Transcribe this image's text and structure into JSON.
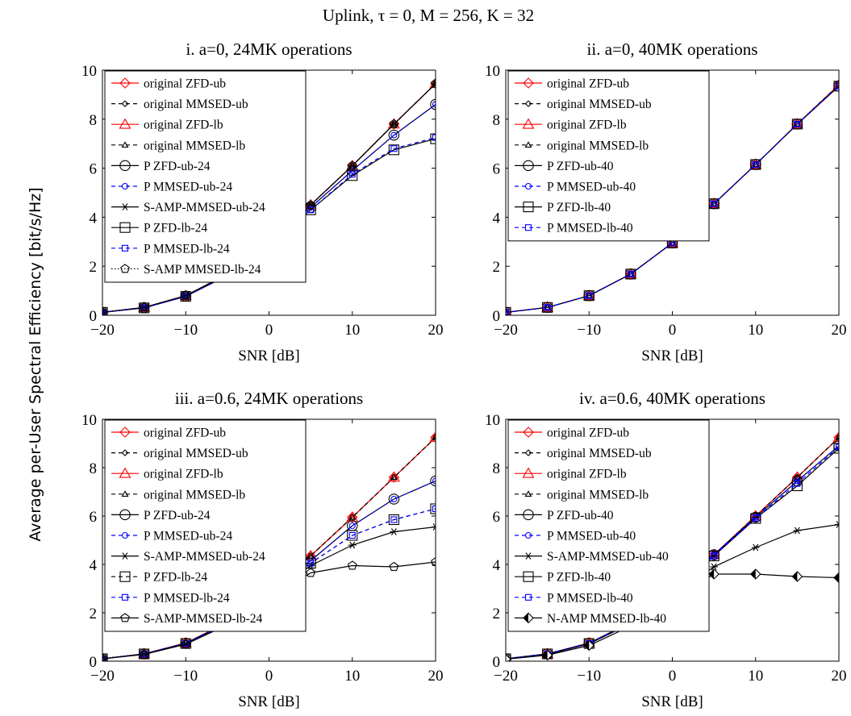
{
  "figure": {
    "title": "Uplink, τ = 0, M = 256, K = 32",
    "ylabel": "Average per-User Spectral Efficiency [bit/s/Hz]",
    "colors": {
      "red": "#ff0000",
      "blue": "#0000ff",
      "black": "#000000"
    }
  },
  "chart_data": [
    {
      "type": "line",
      "title": "i. a=0, 24MK operations",
      "xlabel": "SNR [dB]",
      "xlim": [
        -20,
        20
      ],
      "ylim": [
        0,
        10
      ],
      "xticks": [
        -20,
        -10,
        0,
        10,
        20
      ],
      "yticks": [
        0,
        2,
        4,
        6,
        8,
        10
      ],
      "legend_position": "top-left",
      "x": [
        -20,
        -15,
        -10,
        -5,
        0,
        5,
        10,
        15,
        20
      ],
      "series": [
        {
          "name": "original ZFD-ub",
          "color": "#ff0000",
          "dash": "solid",
          "marker": "diamond",
          "values": [
            0.12,
            0.32,
            0.8,
            1.68,
            2.95,
            4.5,
            6.1,
            7.8,
            9.45
          ]
        },
        {
          "name": "original MMSED-ub",
          "color": "#000000",
          "dash": "dashed",
          "marker": "diamond-small",
          "values": [
            0.12,
            0.32,
            0.8,
            1.68,
            2.95,
            4.5,
            6.1,
            7.8,
            9.45
          ]
        },
        {
          "name": "original ZFD-lb",
          "color": "#ff0000",
          "dash": "solid",
          "marker": "triangle",
          "values": [
            0.12,
            0.32,
            0.8,
            1.68,
            2.95,
            4.5,
            6.1,
            7.8,
            9.45
          ]
        },
        {
          "name": "original MMSED-lb",
          "color": "#000000",
          "dash": "dashed",
          "marker": "triangle-small",
          "values": [
            0.12,
            0.32,
            0.8,
            1.68,
            2.95,
            4.5,
            6.1,
            7.8,
            9.45
          ]
        },
        {
          "name": "P ZFD-ub-24",
          "color": "#000000",
          "dash": "solid",
          "marker": "circle",
          "values": [
            0.12,
            0.31,
            0.78,
            1.65,
            2.85,
            4.4,
            5.9,
            7.35,
            8.6
          ]
        },
        {
          "name": "P MMSED-ub-24",
          "color": "#0000ff",
          "dash": "dashed",
          "marker": "circle-small",
          "values": [
            0.12,
            0.31,
            0.78,
            1.65,
            2.85,
            4.4,
            5.9,
            7.35,
            8.6
          ]
        },
        {
          "name": "S-AMP-MMSED-ub-24",
          "color": "#000000",
          "dash": "solid",
          "marker": "star",
          "values": [
            0.12,
            0.32,
            0.8,
            1.68,
            2.95,
            4.5,
            6.1,
            7.8,
            9.45
          ]
        },
        {
          "name": "P ZFD-lb-24",
          "color": "#000000",
          "dash": "solid",
          "marker": "square",
          "values": [
            0.12,
            0.3,
            0.77,
            1.62,
            2.8,
            4.3,
            5.7,
            6.75,
            7.2
          ]
        },
        {
          "name": "P MMSED-lb-24",
          "color": "#0000ff",
          "dash": "dashed",
          "marker": "square-small",
          "values": [
            0.12,
            0.3,
            0.77,
            1.62,
            2.8,
            4.3,
            5.75,
            6.8,
            7.25
          ]
        },
        {
          "name": "S-AMP MMSED-lb-24",
          "color": "#000000",
          "dash": "dotted",
          "marker": "pentagon",
          "values": [
            0.12,
            0.32,
            0.8,
            1.68,
            2.95,
            4.5,
            6.1,
            7.8,
            9.45
          ]
        }
      ]
    },
    {
      "type": "line",
      "title": "ii. a=0, 40MK operations",
      "xlabel": "SNR [dB]",
      "xlim": [
        -20,
        20
      ],
      "ylim": [
        0,
        10
      ],
      "xticks": [
        -20,
        -10,
        0,
        10,
        20
      ],
      "yticks": [
        0,
        2,
        4,
        6,
        8,
        10
      ],
      "legend_position": "top-left",
      "x": [
        -20,
        -15,
        -10,
        -5,
        0,
        5,
        10,
        15,
        20
      ],
      "series": [
        {
          "name": "original ZFD-ub",
          "color": "#ff0000",
          "dash": "solid",
          "marker": "diamond",
          "values": [
            0.12,
            0.32,
            0.8,
            1.68,
            2.95,
            4.55,
            6.15,
            7.8,
            9.4
          ]
        },
        {
          "name": "original MMSED-ub",
          "color": "#000000",
          "dash": "dashed",
          "marker": "diamond-small",
          "values": [
            0.12,
            0.32,
            0.8,
            1.68,
            2.95,
            4.55,
            6.15,
            7.8,
            9.4
          ]
        },
        {
          "name": "original ZFD-lb",
          "color": "#ff0000",
          "dash": "solid",
          "marker": "triangle",
          "values": [
            0.12,
            0.32,
            0.8,
            1.68,
            2.95,
            4.55,
            6.15,
            7.8,
            9.4
          ]
        },
        {
          "name": "original MMSED-lb",
          "color": "#000000",
          "dash": "dashed",
          "marker": "triangle-small",
          "values": [
            0.12,
            0.32,
            0.8,
            1.68,
            2.95,
            4.55,
            6.15,
            7.8,
            9.4
          ]
        },
        {
          "name": "P ZFD-ub-40",
          "color": "#000000",
          "dash": "solid",
          "marker": "circle",
          "values": [
            0.12,
            0.32,
            0.8,
            1.68,
            2.95,
            4.55,
            6.15,
            7.8,
            9.35
          ]
        },
        {
          "name": "P MMSED-ub-40",
          "color": "#0000ff",
          "dash": "dashed",
          "marker": "circle-small",
          "values": [
            0.12,
            0.32,
            0.8,
            1.68,
            2.95,
            4.55,
            6.15,
            7.8,
            9.35
          ]
        },
        {
          "name": "P ZFD-lb-40",
          "color": "#000000",
          "dash": "solid",
          "marker": "square",
          "values": [
            0.12,
            0.32,
            0.8,
            1.68,
            2.95,
            4.55,
            6.15,
            7.8,
            9.35
          ]
        },
        {
          "name": "P MMSED-lb-40",
          "color": "#0000ff",
          "dash": "dashed",
          "marker": "square-small",
          "values": [
            0.12,
            0.32,
            0.8,
            1.68,
            2.95,
            4.55,
            6.15,
            7.8,
            9.35
          ]
        }
      ]
    },
    {
      "type": "line",
      "title": "iii. a=0.6, 24MK operations",
      "xlabel": "SNR [dB]",
      "xlim": [
        -20,
        20
      ],
      "ylim": [
        0,
        10
      ],
      "xticks": [
        -20,
        -10,
        0,
        10,
        20
      ],
      "yticks": [
        0,
        2,
        4,
        6,
        8,
        10
      ],
      "legend_position": "top-left",
      "x": [
        -20,
        -15,
        -10,
        -5,
        0,
        5,
        10,
        15,
        20
      ],
      "series": [
        {
          "name": "original ZFD-ub",
          "color": "#ff0000",
          "dash": "solid",
          "marker": "diamond",
          "values": [
            0.1,
            0.3,
            0.75,
            1.6,
            2.85,
            4.35,
            5.95,
            7.6,
            9.25
          ]
        },
        {
          "name": "original MMSED-ub",
          "color": "#000000",
          "dash": "dashed",
          "marker": "diamond-small",
          "values": [
            0.1,
            0.3,
            0.75,
            1.6,
            2.85,
            4.35,
            5.95,
            7.6,
            9.25
          ]
        },
        {
          "name": "original ZFD-lb",
          "color": "#ff0000",
          "dash": "solid",
          "marker": "triangle",
          "values": [
            0.1,
            0.3,
            0.75,
            1.6,
            2.85,
            4.35,
            5.95,
            7.6,
            9.25
          ]
        },
        {
          "name": "original MMSED-lb",
          "color": "#000000",
          "dash": "dashed",
          "marker": "triangle-small",
          "values": [
            0.1,
            0.3,
            0.75,
            1.6,
            2.85,
            4.35,
            5.95,
            7.6,
            9.25
          ]
        },
        {
          "name": "P ZFD-ub-24",
          "color": "#000000",
          "dash": "solid",
          "marker": "circle",
          "values": [
            0.1,
            0.3,
            0.74,
            1.58,
            2.8,
            4.15,
            5.6,
            6.7,
            7.45
          ]
        },
        {
          "name": "P MMSED-ub-24",
          "color": "#0000ff",
          "dash": "dashed",
          "marker": "circle-small",
          "values": [
            0.1,
            0.3,
            0.74,
            1.58,
            2.8,
            4.15,
            5.6,
            6.7,
            7.45
          ]
        },
        {
          "name": "S-AMP-MMSED-ub-24",
          "color": "#000000",
          "dash": "solid",
          "marker": "star",
          "values": [
            0.1,
            0.29,
            0.72,
            1.55,
            2.7,
            3.95,
            4.8,
            5.35,
            5.55
          ]
        },
        {
          "name": "P ZFD-lb-24",
          "color": "#000000",
          "dash": "dashed",
          "marker": "square",
          "values": [
            0.1,
            0.3,
            0.73,
            1.57,
            2.78,
            4.05,
            5.2,
            5.85,
            6.3
          ]
        },
        {
          "name": "P MMSED-lb-24",
          "color": "#0000ff",
          "dash": "dashed",
          "marker": "square-small",
          "values": [
            0.1,
            0.3,
            0.73,
            1.57,
            2.78,
            4.05,
            5.2,
            5.85,
            6.3
          ]
        },
        {
          "name": "S-AMP-MMSED-lb-24",
          "color": "#000000",
          "dash": "solid",
          "marker": "pentagon",
          "values": [
            0.1,
            0.28,
            0.7,
            1.5,
            2.6,
            3.65,
            3.95,
            3.9,
            4.1
          ]
        }
      ]
    },
    {
      "type": "line",
      "title": "iv. a=0.6, 40MK operations",
      "xlabel": "SNR [dB]",
      "xlim": [
        -20,
        20
      ],
      "ylim": [
        0,
        10
      ],
      "xticks": [
        -20,
        -10,
        0,
        10,
        20
      ],
      "yticks": [
        0,
        2,
        4,
        6,
        8,
        10
      ],
      "legend_position": "top-left",
      "x": [
        -20,
        -15,
        -10,
        -5,
        0,
        5,
        10,
        15,
        20
      ],
      "series": [
        {
          "name": "original ZFD-ub",
          "color": "#ff0000",
          "dash": "solid",
          "marker": "diamond",
          "values": [
            0.1,
            0.3,
            0.75,
            1.6,
            2.85,
            4.4,
            6.0,
            7.6,
            9.25
          ]
        },
        {
          "name": "original MMSED-ub",
          "color": "#000000",
          "dash": "dashed",
          "marker": "diamond-small",
          "values": [
            0.1,
            0.3,
            0.75,
            1.6,
            2.85,
            4.4,
            6.0,
            7.6,
            9.25
          ]
        },
        {
          "name": "original ZFD-lb",
          "color": "#ff0000",
          "dash": "solid",
          "marker": "triangle",
          "values": [
            0.1,
            0.3,
            0.75,
            1.6,
            2.85,
            4.4,
            6.0,
            7.6,
            9.25
          ]
        },
        {
          "name": "original MMSED-lb",
          "color": "#000000",
          "dash": "dashed",
          "marker": "triangle-small",
          "values": [
            0.1,
            0.3,
            0.75,
            1.6,
            2.85,
            4.4,
            6.0,
            7.6,
            9.25
          ]
        },
        {
          "name": "P ZFD-ub-40",
          "color": "#000000",
          "dash": "solid",
          "marker": "circle",
          "values": [
            0.1,
            0.3,
            0.74,
            1.6,
            2.85,
            4.4,
            5.95,
            7.45,
            8.9
          ]
        },
        {
          "name": "P MMSED-ub-40",
          "color": "#0000ff",
          "dash": "dashed",
          "marker": "circle-small",
          "values": [
            0.1,
            0.3,
            0.74,
            1.6,
            2.85,
            4.4,
            5.95,
            7.45,
            8.9
          ]
        },
        {
          "name": "S-AMP-MMSED-ub-40",
          "color": "#000000",
          "dash": "solid",
          "marker": "star",
          "values": [
            0.1,
            0.28,
            0.72,
            1.55,
            2.7,
            3.9,
            4.7,
            5.4,
            5.65
          ]
        },
        {
          "name": "P ZFD-lb-40",
          "color": "#000000",
          "dash": "solid",
          "marker": "square",
          "values": [
            0.1,
            0.3,
            0.73,
            1.58,
            2.82,
            4.35,
            5.9,
            7.25,
            8.8
          ]
        },
        {
          "name": "P MMSED-lb-40",
          "color": "#0000ff",
          "dash": "dashed",
          "marker": "square-small",
          "values": [
            0.1,
            0.3,
            0.73,
            1.58,
            2.82,
            4.35,
            5.9,
            7.35,
            8.85
          ]
        },
        {
          "name": "N-AMP MMSED-lb-40",
          "color": "#000000",
          "dash": "solid",
          "marker": "half-diamond",
          "values": [
            0.08,
            0.25,
            0.65,
            1.45,
            2.5,
            3.6,
            3.6,
            3.5,
            3.45
          ]
        }
      ]
    }
  ]
}
